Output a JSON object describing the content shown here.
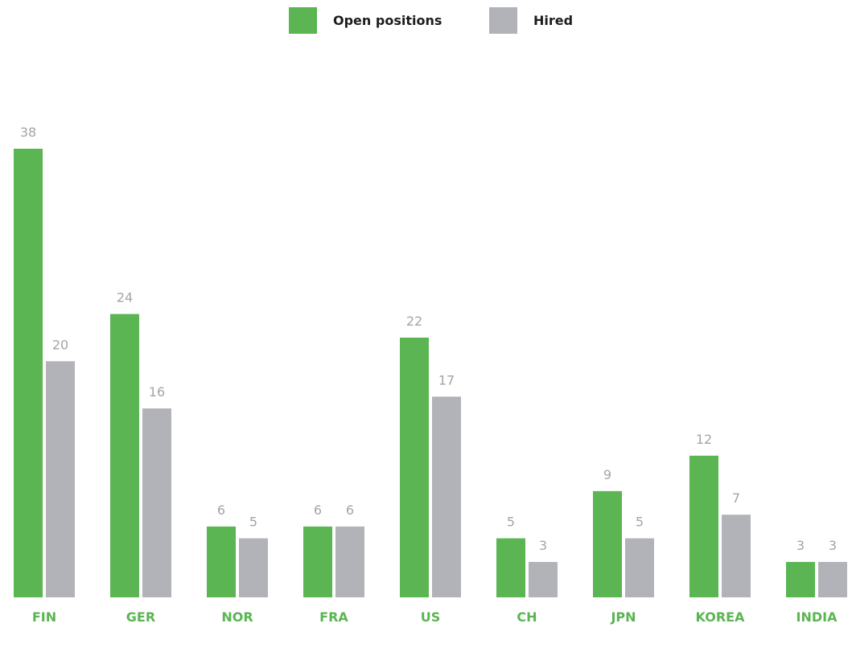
{
  "chart_data": {
    "type": "bar",
    "categories": [
      "FIN",
      "GER",
      "NOR",
      "FRA",
      "US",
      "CH",
      "JPN",
      "KOREA",
      "INDIA"
    ],
    "series": [
      {
        "name": "Open positions",
        "values": [
          38,
          24,
          6,
          6,
          22,
          5,
          9,
          12,
          3
        ],
        "color": "#5ab552"
      },
      {
        "name": "Hired",
        "values": [
          20,
          16,
          5,
          6,
          17,
          3,
          5,
          7,
          3
        ],
        "color": "#b2b3b8"
      }
    ],
    "data_labels": true,
    "ylim": [
      0,
      38
    ],
    "grid": false,
    "legend_position": "top-center",
    "category_label_color": "#5ab552",
    "value_label_color": "#a3a4a8"
  }
}
